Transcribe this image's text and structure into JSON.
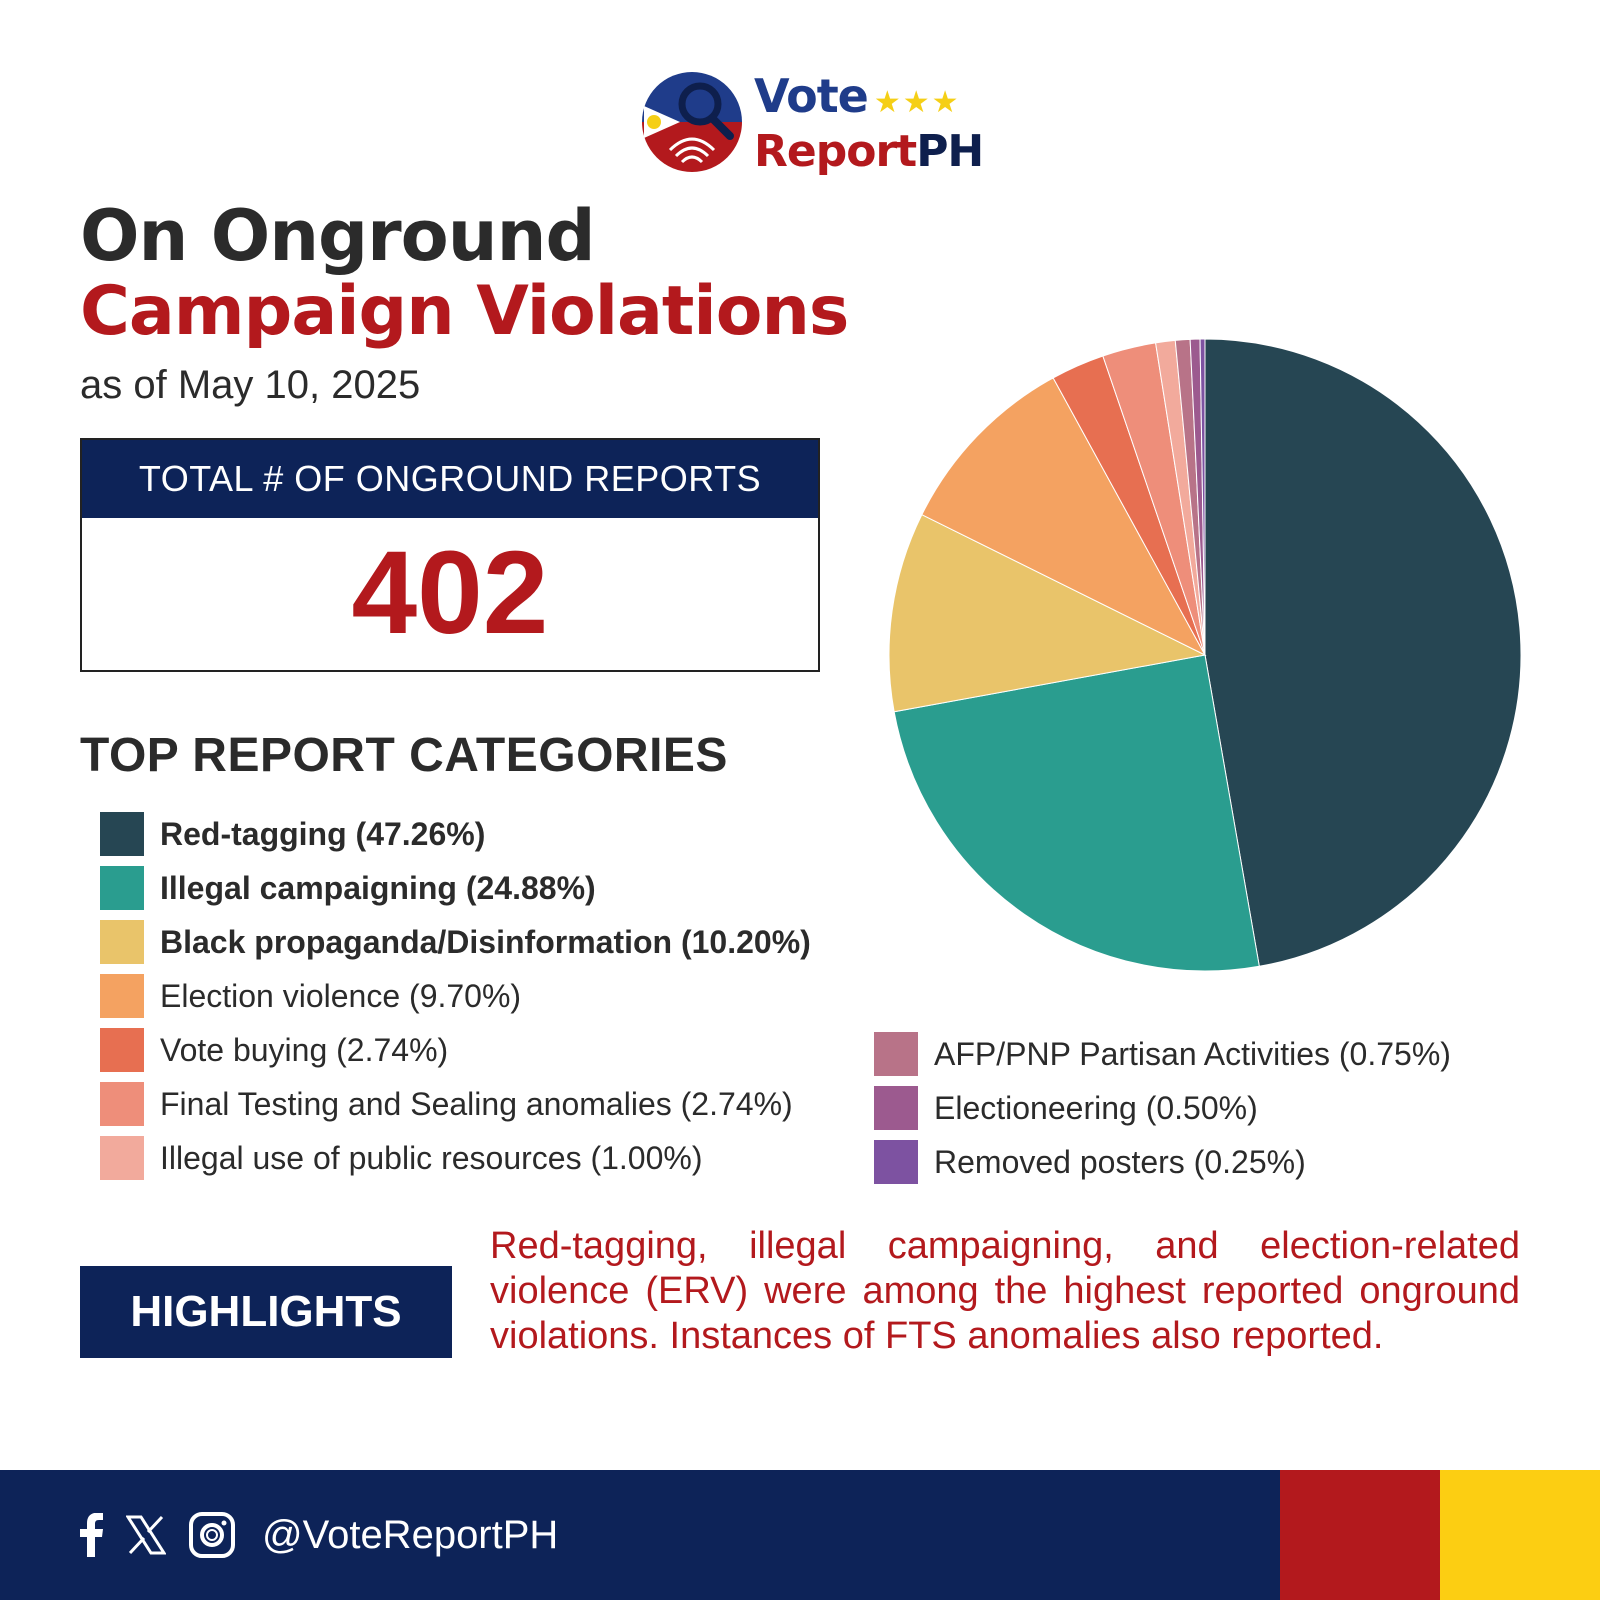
{
  "brand": {
    "vote": "Vote",
    "stars": "★★★",
    "report": "Report",
    "ph": "PH"
  },
  "title": {
    "line1": "On Onground",
    "line2": "Campaign Violations",
    "subtitle": "as of May 10, 2025"
  },
  "total": {
    "label": "TOTAL # OF ONGROUND REPORTS",
    "value": "402"
  },
  "categories_heading": "TOP REPORT CATEGORIES",
  "chart_data": {
    "type": "pie",
    "title": "",
    "categories": [
      "Red-tagging",
      "Illegal campaigning",
      "Black propaganda/Disinformation",
      "Election violence",
      "Vote buying",
      "Final Testing and Sealing anomalies",
      "Illegal use of public resources",
      "AFP/PNP Partisan Activities",
      "Electioneering",
      "Removed posters"
    ],
    "values": [
      47.26,
      24.88,
      10.2,
      9.7,
      2.74,
      2.74,
      1.0,
      0.75,
      0.5,
      0.25
    ],
    "labels": [
      "Red-tagging (47.26%)",
      "Illegal campaigning (24.88%)",
      "Black propaganda/Disinformation (10.20%)",
      "Election violence (9.70%)",
      "Vote buying (2.74%)",
      "Final Testing and Sealing anomalies (2.74%)",
      "Illegal use of public resources (1.00%)",
      "AFP/PNP Partisan Activities (0.75%)",
      "Electioneering (0.50%)",
      "Removed posters (0.25%)"
    ],
    "colors": [
      "#264653",
      "#2a9d8f",
      "#e9c46a",
      "#f4a261",
      "#e76f51",
      "#ee8e7a",
      "#f2aa9c",
      "#b87388",
      "#9c5a8f",
      "#7d52a1"
    ],
    "bold": [
      true,
      true,
      true,
      false,
      false,
      false,
      false,
      false,
      false,
      false
    ]
  },
  "highlights": {
    "label": "HIGHLIGHTS",
    "text": "Red-tagging, illegal campaigning, and election-related violence (ERV) were among the highest reported onground violations. Instances of FTS anomalies also reported."
  },
  "footer": {
    "handle": "@VoteReportPH",
    "icons": [
      "facebook-icon",
      "x-icon",
      "instagram-icon"
    ]
  },
  "colors": {
    "navy": "#0d2358",
    "red": "#b3191d",
    "yellow": "#fcce12"
  }
}
